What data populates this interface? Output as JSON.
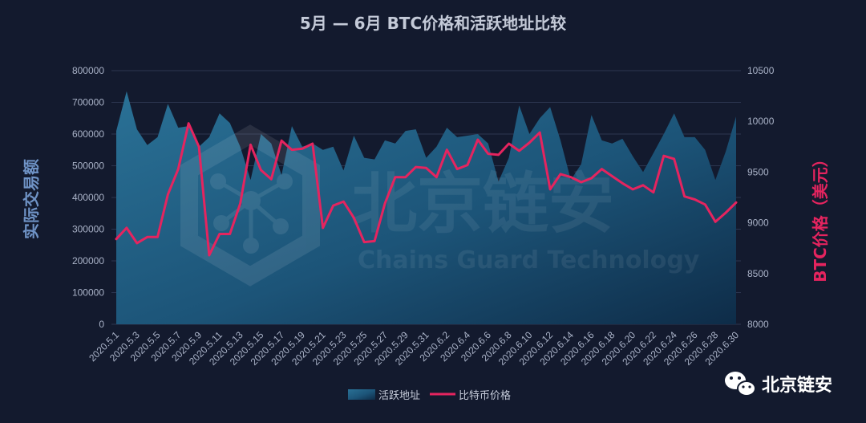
{
  "chart_data": {
    "type": "area+line",
    "title": "5月 — 6月 BTC价格和活跃地址比较",
    "ylabel_left": "实际交易额",
    "ylabel_right": "BTC价格（美元）",
    "ylim_left": [
      0,
      800000
    ],
    "ylim_right": [
      8000,
      10500
    ],
    "yticks_left": [
      "0",
      "100000",
      "200000",
      "300000",
      "400000",
      "500000",
      "600000",
      "700000",
      "800000"
    ],
    "yticks_right": [
      "8000",
      "8500",
      "9000",
      "9500",
      "10000",
      "10500"
    ],
    "legend_position": "bottom-center",
    "grid": true,
    "categories": [
      "2020.5.1",
      "2020.5.2",
      "2020.5.3",
      "2020.5.4",
      "2020.5.5",
      "2020.5.6",
      "2020.5.7",
      "2020.5.8",
      "2020.5.9",
      "2020.5.10",
      "2020.5.11",
      "2020.5.12",
      "2020.5.13",
      "2020.5.14",
      "2020.5.15",
      "2020.5.16",
      "2020.5.17",
      "2020.5.18",
      "2020.5.19",
      "2020.5.20",
      "2020.5.21",
      "2020.5.22",
      "2020.5.23",
      "2020.5.24",
      "2020.5.25",
      "2020.5.26",
      "2020.5.27",
      "2020.5.28",
      "2020.5.29",
      "2020.5.30",
      "2020.5.31",
      "2020.6.1",
      "2020.6.2",
      "2020.6.3",
      "2020.6.4",
      "2020.6.5",
      "2020.6.6",
      "2020.6.7",
      "2020.6.8",
      "2020.6.9",
      "2020.6.10",
      "2020.6.11",
      "2020.6.12",
      "2020.6.13",
      "2020.6.14",
      "2020.6.15",
      "2020.6.16",
      "2020.6.17",
      "2020.6.18",
      "2020.6.19",
      "2020.6.20",
      "2020.6.21",
      "2020.6.22",
      "2020.6.23",
      "2020.6.24",
      "2020.6.25",
      "2020.6.26",
      "2020.6.27",
      "2020.6.28",
      "2020.6.29",
      "2020.6.30"
    ],
    "xtick_labels": [
      "2020.5.1",
      "2020.5.3",
      "2020.5.5",
      "2020.5.7",
      "2020.5.9",
      "2020.5.11",
      "2020.5.13",
      "2020.5.15",
      "2020.5.17",
      "2020.5.19",
      "2020.5.21",
      "2020.5.23",
      "2020.5.25",
      "2020.5.27",
      "2020.5.29",
      "2020.5.31",
      "2020.6.2",
      "2020.6.4",
      "2020.6.6",
      "2020.6.8",
      "2020.6.10",
      "2020.6.12",
      "2020.6.14",
      "2020.6.16",
      "2020.6.18",
      "2020.6.20",
      "2020.6.22",
      "2020.6.24",
      "2020.6.26",
      "2020.6.28",
      "2020.6.30"
    ],
    "series": [
      {
        "name": "活跃地址",
        "type": "area",
        "axis": "left",
        "color": "#1f5f86",
        "values": [
          610000,
          735000,
          615000,
          565000,
          590000,
          695000,
          620000,
          625000,
          560000,
          590000,
          665000,
          635000,
          560000,
          455000,
          600000,
          570000,
          470000,
          625000,
          560000,
          570000,
          550000,
          560000,
          485000,
          595000,
          525000,
          520000,
          580000,
          570000,
          610000,
          615000,
          525000,
          560000,
          620000,
          590000,
          595000,
          600000,
          570000,
          450000,
          525000,
          690000,
          600000,
          650000,
          685000,
          580000,
          455000,
          505000,
          660000,
          580000,
          570000,
          585000,
          530000,
          480000,
          540000,
          600000,
          665000,
          590000,
          590000,
          550000,
          455000,
          545000,
          655000
        ]
      },
      {
        "name": "比特币价格",
        "type": "line",
        "axis": "right",
        "color": "#e5245f",
        "values": [
          8840,
          8950,
          8800,
          8860,
          8860,
          9280,
          9530,
          9980,
          9750,
          8680,
          8890,
          8890,
          9190,
          9770,
          9520,
          9430,
          9810,
          9720,
          9730,
          9780,
          8950,
          9170,
          9210,
          9050,
          8810,
          8820,
          9190,
          9450,
          9450,
          9550,
          9540,
          9450,
          9720,
          9530,
          9570,
          9820,
          9680,
          9670,
          9780,
          9710,
          9790,
          9890,
          9330,
          9480,
          9450,
          9400,
          9440,
          9530,
          9460,
          9390,
          9330,
          9370,
          9300,
          9660,
          9630,
          9260,
          9230,
          9180,
          9010,
          9100,
          9200
        ]
      }
    ]
  },
  "watermark": {
    "name_cn": "北京链安",
    "name_en": "Chains Guard Technology"
  },
  "brand": {
    "label": "北京链安",
    "icon": "wechat-icon"
  },
  "colors": {
    "background": "#131a2e",
    "area": "#1f5f86",
    "line": "#e5245f",
    "grid": "#2c3550"
  }
}
